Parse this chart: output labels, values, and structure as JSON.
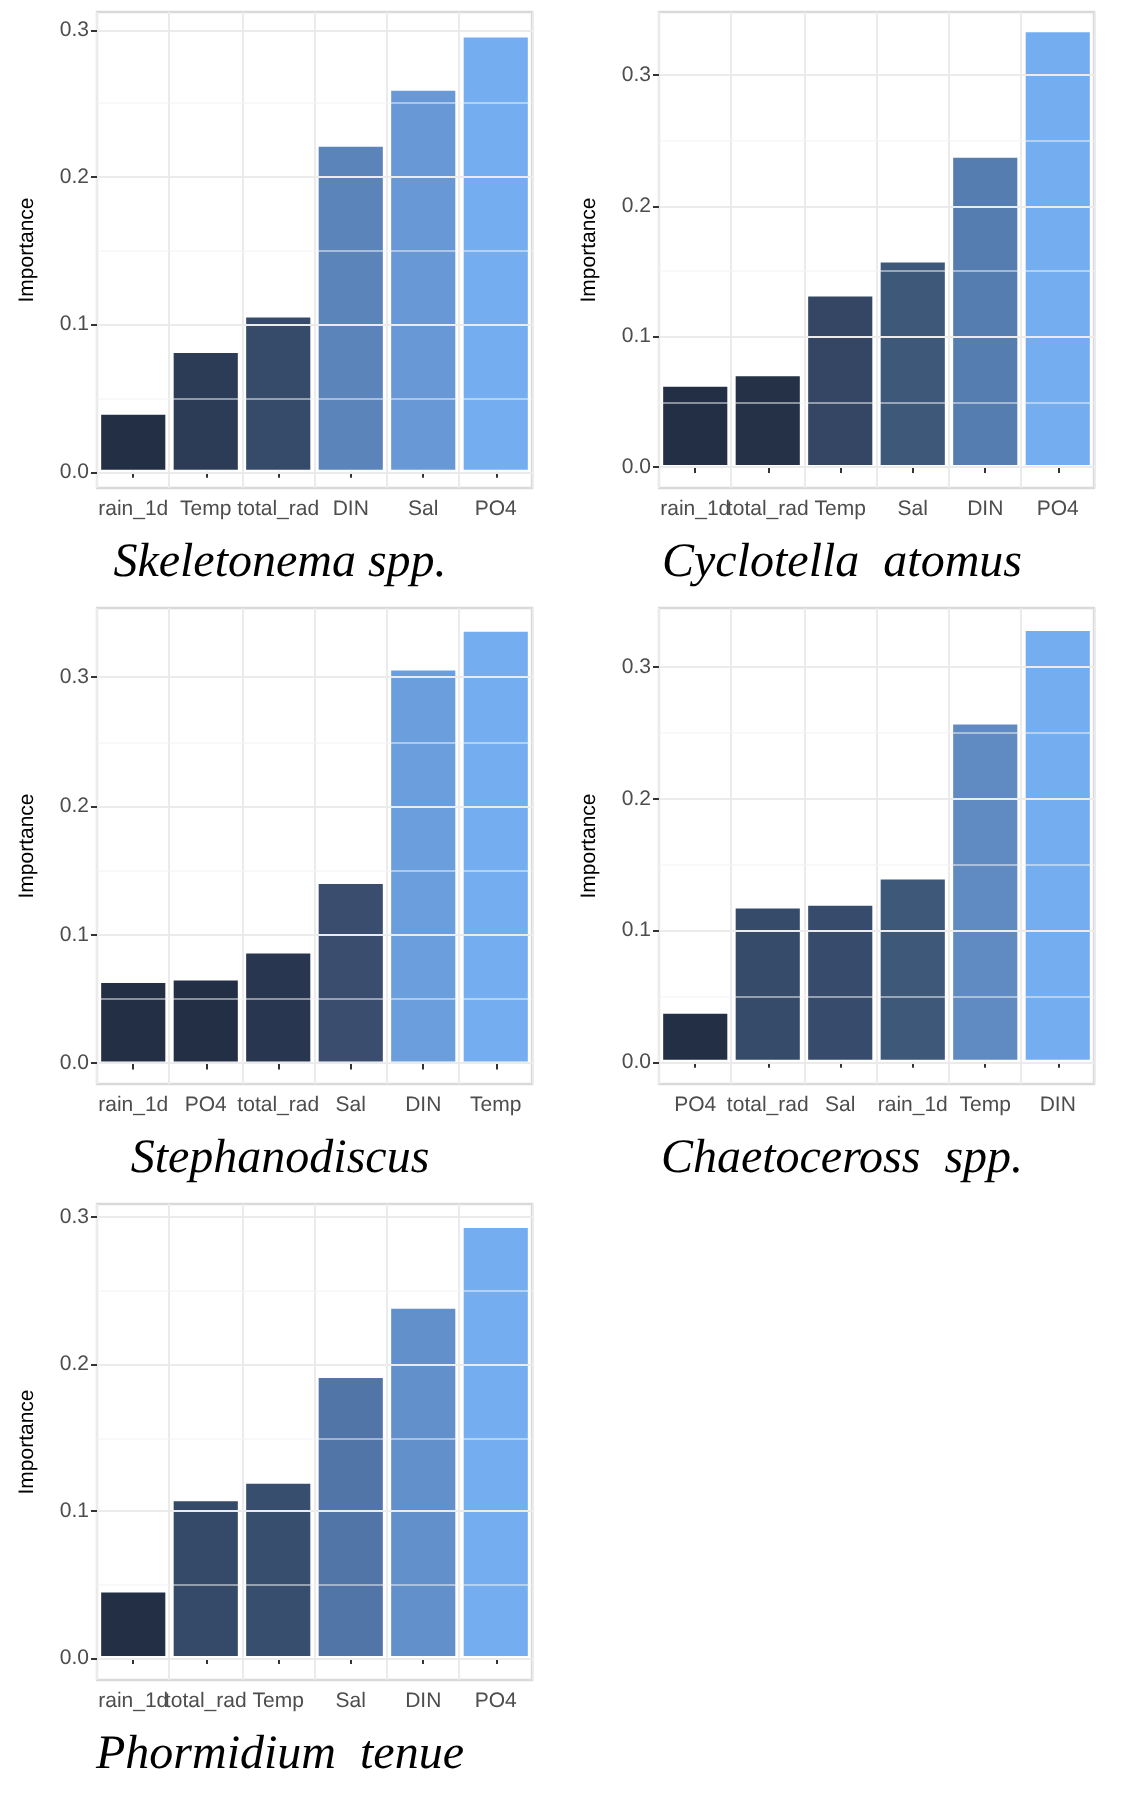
{
  "chart_data": [
    {
      "type": "bar",
      "title": "Skeletonema spp.",
      "ylabel": "Importance",
      "categories": [
        "rain_1d",
        "Temp",
        "total_rad",
        "DIN",
        "Sal",
        "PO4"
      ],
      "values": [
        0.04,
        0.082,
        0.106,
        0.222,
        0.26,
        0.296
      ],
      "colors": [
        "#232f45",
        "#2c3c56",
        "#364a6a",
        "#5b84bb",
        "#6899d6",
        "#74aef0"
      ],
      "ylim": [
        -0.011,
        0.312
      ],
      "yticks": [
        {
          "value": 0,
          "label": "0.0"
        },
        {
          "value": 0.1,
          "label": "0.1"
        },
        {
          "value": 0.2,
          "label": "0.2"
        },
        {
          "value": 0.3,
          "label": "0.3"
        }
      ],
      "grid": true
    },
    {
      "type": "bar",
      "title": "Cyclotella  atomus",
      "ylabel": "Importance",
      "categories": [
        "rain_1d",
        "total_rad",
        "Temp",
        "Sal",
        "DIN",
        "PO4"
      ],
      "values": [
        0.063,
        0.071,
        0.132,
        0.158,
        0.238,
        0.334
      ],
      "colors": [
        "#232f45",
        "#243147",
        "#344664",
        "#3d5878",
        "#557daf",
        "#74aef0"
      ],
      "ylim": [
        -0.016,
        0.348
      ],
      "yticks": [
        {
          "value": 0,
          "label": "0.0"
        },
        {
          "value": 0.1,
          "label": "0.1"
        },
        {
          "value": 0.2,
          "label": "0.2"
        },
        {
          "value": 0.3,
          "label": "0.3"
        }
      ],
      "grid": true
    },
    {
      "type": "bar",
      "title": "Stephanodiscus",
      "ylabel": "Importance",
      "categories": [
        "rain_1d",
        "PO4",
        "total_rad",
        "Sal",
        "DIN",
        "Temp"
      ],
      "values": [
        0.064,
        0.066,
        0.087,
        0.141,
        0.307,
        0.337
      ],
      "colors": [
        "#232f45",
        "#232f45",
        "#29364f",
        "#3a4d6e",
        "#6b9edc",
        "#74aef0"
      ],
      "ylim": [
        -0.016,
        0.354
      ],
      "yticks": [
        {
          "value": 0,
          "label": "0.0"
        },
        {
          "value": 0.1,
          "label": "0.1"
        },
        {
          "value": 0.2,
          "label": "0.2"
        },
        {
          "value": 0.3,
          "label": "0.3"
        }
      ],
      "grid": true
    },
    {
      "type": "bar",
      "title": "Chaetoceross  spp.",
      "ylabel": "Importance",
      "categories": [
        "PO4",
        "total_rad",
        "Sal",
        "rain_1d",
        "Temp",
        "DIN"
      ],
      "values": [
        0.038,
        0.118,
        0.12,
        0.14,
        0.258,
        0.329
      ],
      "colors": [
        "#232f45",
        "#364a6a",
        "#374c6c",
        "#3d5878",
        "#5f8ac2",
        "#74aef0"
      ],
      "ylim": [
        -0.017,
        0.345
      ],
      "yticks": [
        {
          "value": 0,
          "label": "0.0"
        },
        {
          "value": 0.1,
          "label": "0.1"
        },
        {
          "value": 0.2,
          "label": "0.2"
        },
        {
          "value": 0.3,
          "label": "0.3"
        }
      ],
      "grid": true
    },
    {
      "type": "bar",
      "title": "Phormidium  tenue",
      "ylabel": "Importance",
      "categories": [
        "rain_1d",
        "total_rad",
        "Temp",
        "Sal",
        "DIN",
        "PO4"
      ],
      "values": [
        0.046,
        0.108,
        0.12,
        0.192,
        0.239,
        0.294
      ],
      "colors": [
        "#232f45",
        "#354968",
        "#384e6e",
        "#5175a6",
        "#6190cb",
        "#74aef0"
      ],
      "ylim": [
        -0.015,
        0.309
      ],
      "yticks": [
        {
          "value": 0,
          "label": "0.0"
        },
        {
          "value": 0.1,
          "label": "0.1"
        },
        {
          "value": 0.2,
          "label": "0.2"
        },
        {
          "value": 0.3,
          "label": "0.3"
        }
      ],
      "grid": true
    }
  ]
}
